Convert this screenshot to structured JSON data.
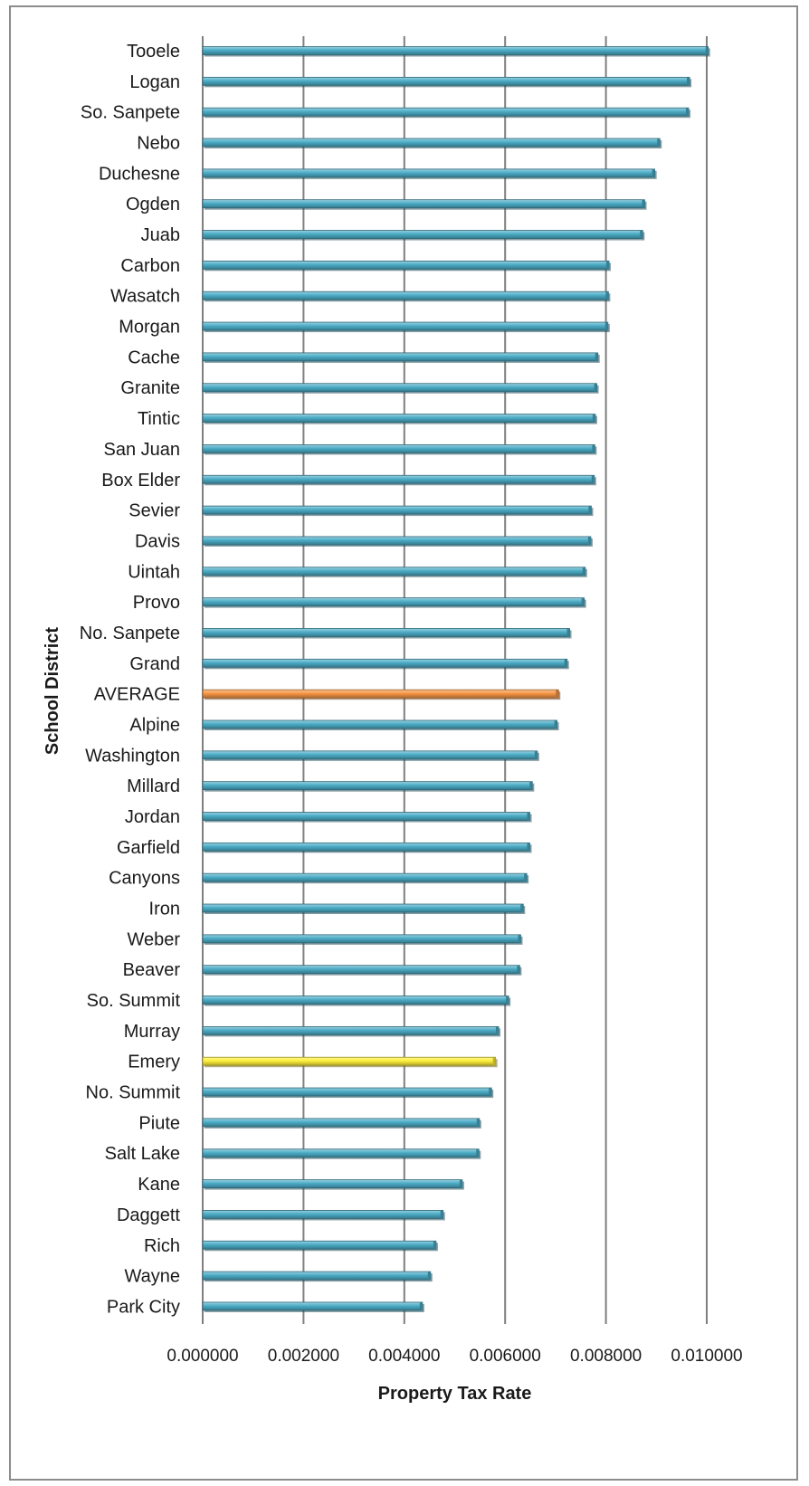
{
  "chart_data": {
    "type": "bar",
    "orientation": "horizontal",
    "xlabel": "Property Tax Rate",
    "ylabel": "School District",
    "xlim": [
      0,
      0.01
    ],
    "x_ticks": [
      "0.000000",
      "0.002000",
      "0.004000",
      "0.006000",
      "0.008000",
      "0.010000"
    ],
    "grid": "vertical major gridlines",
    "legend": "none",
    "colors": {
      "default": "#4bacc6",
      "average": "#f79646",
      "highlight": "#ffef3a"
    },
    "bars": [
      {
        "label": "Tooele",
        "value": 0.01003,
        "color": "default"
      },
      {
        "label": "Logan",
        "value": 0.00966,
        "color": "default"
      },
      {
        "label": "So. Sanpete",
        "value": 0.00964,
        "color": "default"
      },
      {
        "label": "Nebo",
        "value": 0.00907,
        "color": "default"
      },
      {
        "label": "Duchesne",
        "value": 0.00897,
        "color": "default"
      },
      {
        "label": "Ogden",
        "value": 0.00877,
        "color": "default"
      },
      {
        "label": "Juab",
        "value": 0.00873,
        "color": "default"
      },
      {
        "label": "Carbon",
        "value": 0.00806,
        "color": "default"
      },
      {
        "label": "Wasatch",
        "value": 0.00805,
        "color": "default"
      },
      {
        "label": "Morgan",
        "value": 0.00804,
        "color": "default"
      },
      {
        "label": "Cache",
        "value": 0.00784,
        "color": "default"
      },
      {
        "label": "Granite",
        "value": 0.00782,
        "color": "default"
      },
      {
        "label": "Tintic",
        "value": 0.00779,
        "color": "default"
      },
      {
        "label": "San Juan",
        "value": 0.00778,
        "color": "default"
      },
      {
        "label": "Box Elder",
        "value": 0.00777,
        "color": "default"
      },
      {
        "label": "Sevier",
        "value": 0.00771,
        "color": "default"
      },
      {
        "label": "Davis",
        "value": 0.0077,
        "color": "default"
      },
      {
        "label": "Uintah",
        "value": 0.00759,
        "color": "default"
      },
      {
        "label": "Provo",
        "value": 0.00757,
        "color": "default"
      },
      {
        "label": "No. Sanpete",
        "value": 0.00728,
        "color": "default"
      },
      {
        "label": "Grand",
        "value": 0.00723,
        "color": "default"
      },
      {
        "label": "AVERAGE",
        "value": 0.00706,
        "color": "average"
      },
      {
        "label": "Alpine",
        "value": 0.00703,
        "color": "default"
      },
      {
        "label": "Washington",
        "value": 0.00664,
        "color": "default"
      },
      {
        "label": "Millard",
        "value": 0.00654,
        "color": "default"
      },
      {
        "label": "Jordan",
        "value": 0.00649,
        "color": "default"
      },
      {
        "label": "Garfield",
        "value": 0.00649,
        "color": "default"
      },
      {
        "label": "Canyons",
        "value": 0.00643,
        "color": "default"
      },
      {
        "label": "Iron",
        "value": 0.00636,
        "color": "default"
      },
      {
        "label": "Weber",
        "value": 0.00631,
        "color": "default"
      },
      {
        "label": "Beaver",
        "value": 0.00629,
        "color": "default"
      },
      {
        "label": "So. Summit",
        "value": 0.00607,
        "color": "default"
      },
      {
        "label": "Murray",
        "value": 0.00587,
        "color": "default"
      },
      {
        "label": "Emery",
        "value": 0.00581,
        "color": "highlight"
      },
      {
        "label": "No. Summit",
        "value": 0.00573,
        "color": "default"
      },
      {
        "label": "Piute",
        "value": 0.00549,
        "color": "default"
      },
      {
        "label": "Salt Lake",
        "value": 0.00548,
        "color": "default"
      },
      {
        "label": "Kane",
        "value": 0.00515,
        "color": "default"
      },
      {
        "label": "Daggett",
        "value": 0.00477,
        "color": "default"
      },
      {
        "label": "Rich",
        "value": 0.00463,
        "color": "default"
      },
      {
        "label": "Wayne",
        "value": 0.00452,
        "color": "default"
      },
      {
        "label": "Park City",
        "value": 0.00436,
        "color": "default"
      }
    ]
  }
}
